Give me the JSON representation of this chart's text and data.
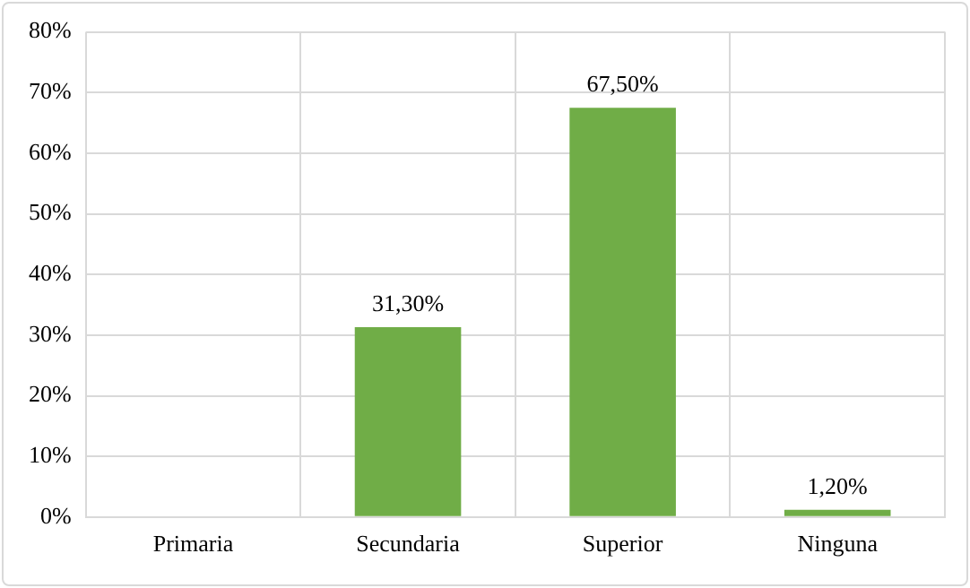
{
  "chart_data": {
    "type": "bar",
    "categories": [
      "Primaria",
      "Secundaria",
      "Superior",
      "Ninguna"
    ],
    "values": [
      0,
      31.3,
      67.5,
      1.2
    ],
    "value_labels": [
      null,
      "31,30%",
      "67,50%",
      "1,20%"
    ],
    "color": "#70ad47",
    "ylim": [
      0,
      80
    ],
    "yticks": [
      {
        "value": 0,
        "label": "0%"
      },
      {
        "value": 10,
        "label": "10%"
      },
      {
        "value": 20,
        "label": "20%"
      },
      {
        "value": 30,
        "label": "30%"
      },
      {
        "value": 40,
        "label": "40%"
      },
      {
        "value": 50,
        "label": "50%"
      },
      {
        "value": 60,
        "label": "60%"
      },
      {
        "value": 70,
        "label": "70%"
      },
      {
        "value": 80,
        "label": "80%"
      }
    ],
    "grid": true
  }
}
